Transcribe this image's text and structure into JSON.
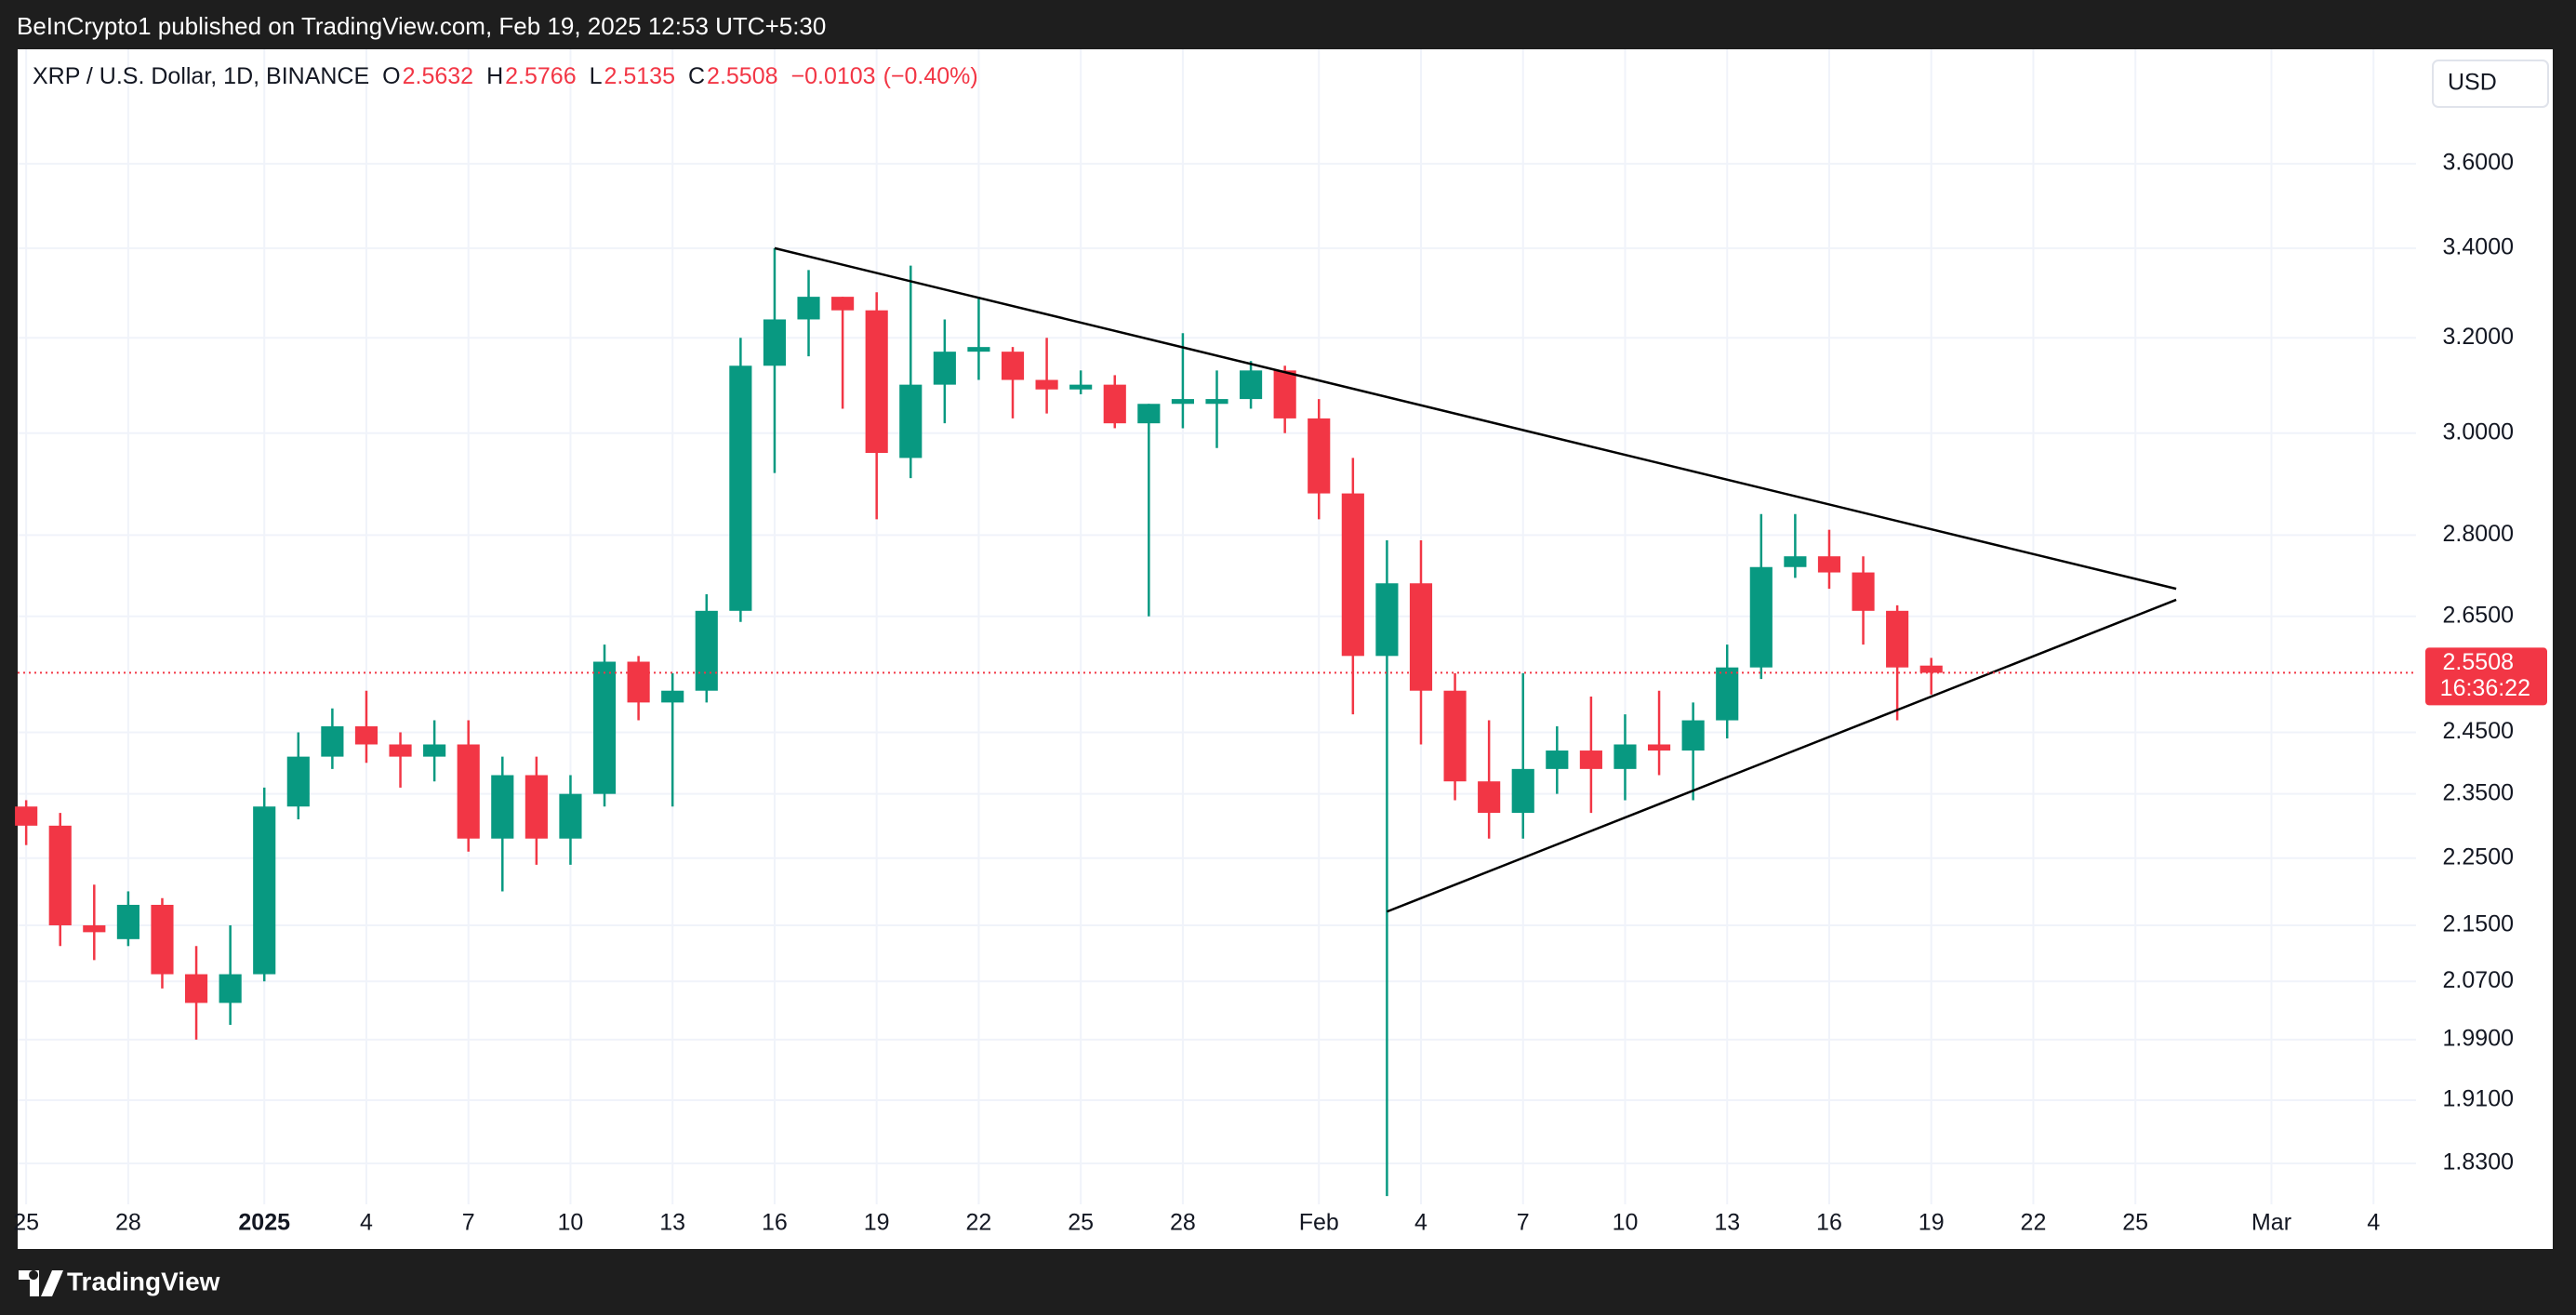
{
  "header": {
    "text": "BeInCrypto1 published on TradingView.com, Feb 19, 2025 12:53 UTC+5:30"
  },
  "footer": {
    "brand": "TradingView"
  },
  "chart_data": {
    "type": "candlestick",
    "title": "XRP / U.S. Dollar, 1D, BINANCE",
    "ohlc_labels": [
      "O",
      "H",
      "L",
      "C"
    ],
    "change": "−0.0103",
    "change_percent": "(−0.40%)",
    "currency": "USD",
    "countdown": "16:36:22",
    "up_color": "#089981",
    "down_color": "#f23645",
    "log_scale": true,
    "grid": true,
    "x": [
      0,
      1,
      2,
      3,
      4,
      5,
      6,
      7,
      8,
      9,
      10,
      11,
      12,
      13,
      14,
      15,
      16,
      17,
      18,
      19,
      20,
      21,
      22,
      23,
      24,
      25,
      26,
      27,
      28,
      29,
      30,
      31,
      32,
      33,
      34,
      35,
      36,
      37,
      38,
      39,
      40,
      41,
      42,
      43,
      44,
      45,
      46,
      47,
      48,
      49,
      50,
      51,
      52,
      53,
      54,
      55,
      56
    ],
    "open": [
      2.33,
      2.3,
      2.15,
      2.13,
      2.18,
      2.08,
      2.04,
      2.08,
      2.33,
      2.41,
      2.46,
      2.43,
      2.41,
      2.43,
      2.28,
      2.38,
      2.28,
      2.35,
      2.57,
      2.5,
      2.52,
      2.66,
      3.14,
      3.24,
      3.29,
      3.26,
      2.95,
      3.1,
      3.17,
      3.17,
      3.11,
      3.09,
      3.1,
      3.02,
      3.06,
      3.06,
      3.07,
      3.13,
      3.03,
      2.88,
      2.58,
      2.71,
      2.52,
      2.37,
      2.32,
      2.39,
      2.42,
      2.39,
      2.43,
      2.42,
      2.47,
      2.56,
      2.74,
      2.76,
      2.73,
      2.66,
      2.5632
    ],
    "high": [
      2.34,
      2.32,
      2.21,
      2.2,
      2.19,
      2.12,
      2.15,
      2.36,
      2.45,
      2.49,
      2.52,
      2.45,
      2.47,
      2.47,
      2.41,
      2.41,
      2.38,
      2.6,
      2.58,
      2.55,
      2.69,
      3.2,
      3.4,
      3.35,
      3.29,
      3.3,
      3.36,
      3.24,
      3.29,
      3.18,
      3.2,
      3.13,
      3.12,
      3.06,
      3.21,
      3.13,
      3.15,
      3.14,
      3.07,
      2.95,
      2.79,
      2.79,
      2.55,
      2.47,
      2.55,
      2.46,
      2.51,
      2.48,
      2.52,
      2.5,
      2.6,
      2.84,
      2.84,
      2.81,
      2.76,
      2.67,
      2.5766
    ],
    "low": [
      2.27,
      2.12,
      2.1,
      2.12,
      2.06,
      1.99,
      2.01,
      2.07,
      2.31,
      2.39,
      2.4,
      2.36,
      2.37,
      2.26,
      2.2,
      2.24,
      2.24,
      2.33,
      2.47,
      2.33,
      2.5,
      2.64,
      2.92,
      3.16,
      3.05,
      2.83,
      2.91,
      3.02,
      3.11,
      3.03,
      3.04,
      3.08,
      3.01,
      2.65,
      3.01,
      2.97,
      3.05,
      3.0,
      2.83,
      2.48,
      1.79,
      2.43,
      2.34,
      2.28,
      2.28,
      2.35,
      2.32,
      2.34,
      2.38,
      2.34,
      2.44,
      2.54,
      2.72,
      2.7,
      2.6,
      2.47,
      2.5135
    ],
    "close": [
      2.3,
      2.15,
      2.14,
      2.18,
      2.08,
      2.04,
      2.08,
      2.33,
      2.41,
      2.46,
      2.43,
      2.41,
      2.43,
      2.28,
      2.38,
      2.28,
      2.35,
      2.57,
      2.5,
      2.52,
      2.66,
      3.14,
      3.24,
      3.29,
      3.26,
      2.96,
      3.1,
      3.17,
      3.18,
      3.11,
      3.09,
      3.1,
      3.02,
      3.06,
      3.07,
      3.07,
      3.13,
      3.03,
      2.88,
      2.58,
      2.71,
      2.52,
      2.37,
      2.32,
      2.39,
      2.42,
      2.39,
      2.43,
      2.42,
      2.47,
      2.56,
      2.74,
      2.76,
      2.73,
      2.66,
      2.56,
      2.5508
    ],
    "xlim": [
      -0.25,
      70.25
    ],
    "xticks": [
      {
        "value": 0,
        "label": "25"
      },
      {
        "value": 3,
        "label": "28"
      },
      {
        "value": 7,
        "label": "2025"
      },
      {
        "value": 10,
        "label": "4"
      },
      {
        "value": 13,
        "label": "7"
      },
      {
        "value": 16,
        "label": "10"
      },
      {
        "value": 19,
        "label": "13"
      },
      {
        "value": 22,
        "label": "16"
      },
      {
        "value": 25,
        "label": "19"
      },
      {
        "value": 28,
        "label": "22"
      },
      {
        "value": 31,
        "label": "25"
      },
      {
        "value": 34,
        "label": "28"
      },
      {
        "value": 38,
        "label": "Feb"
      },
      {
        "value": 41,
        "label": "4"
      },
      {
        "value": 44,
        "label": "7"
      },
      {
        "value": 47,
        "label": "10"
      },
      {
        "value": 50,
        "label": "13"
      },
      {
        "value": 53,
        "label": "16"
      },
      {
        "value": 56,
        "label": "19"
      },
      {
        "value": 59,
        "label": "22"
      },
      {
        "value": 62,
        "label": "25"
      },
      {
        "value": 66,
        "label": "Mar"
      },
      {
        "value": 69,
        "label": "4"
      }
    ],
    "ylim": [
      1.78,
      3.89
    ],
    "yticks": [
      {
        "value": 3.6,
        "label": "3.6000"
      },
      {
        "value": 3.4,
        "label": "3.4000"
      },
      {
        "value": 3.2,
        "label": "3.2000"
      },
      {
        "value": 3.0,
        "label": "3.0000"
      },
      {
        "value": 2.8,
        "label": "2.8000"
      },
      {
        "value": 2.65,
        "label": "2.6500"
      },
      {
        "value": 2.45,
        "label": "2.4500"
      },
      {
        "value": 2.35,
        "label": "2.3500"
      },
      {
        "value": 2.25,
        "label": "2.2500"
      },
      {
        "value": 2.15,
        "label": "2.1500"
      },
      {
        "value": 2.07,
        "label": "2.0700"
      },
      {
        "value": 1.99,
        "label": "1.9900"
      },
      {
        "value": 1.91,
        "label": "1.9100"
      },
      {
        "value": 1.83,
        "label": "1.8300"
      }
    ],
    "trendlines": [
      {
        "x": [
          22,
          63.2
        ],
        "y": [
          3.4,
          2.7
        ],
        "color": "#000000"
      },
      {
        "x": [
          40,
          63.2
        ],
        "y": [
          2.17,
          2.68
        ],
        "color": "#000000"
      }
    ]
  }
}
